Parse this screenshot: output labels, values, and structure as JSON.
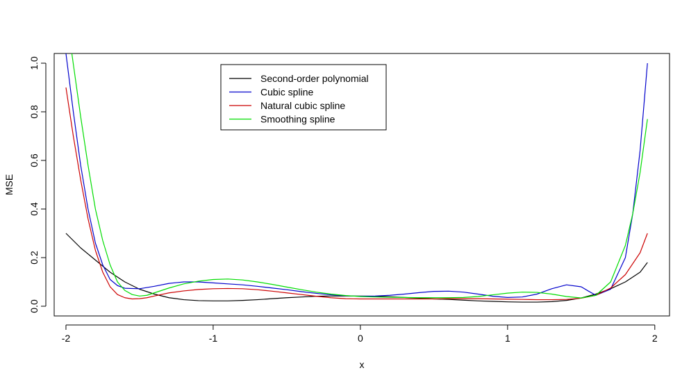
{
  "chart_data": {
    "type": "line",
    "title": "",
    "xlabel": "x",
    "ylabel": "MSE",
    "xlim": [
      -2.08,
      2.1
    ],
    "ylim": [
      -0.04,
      1.04
    ],
    "xticks": [
      -2,
      -1,
      0,
      1,
      2
    ],
    "yticks": [
      0.0,
      0.2,
      0.4,
      0.6,
      0.8,
      1.0
    ],
    "xtick_labels": [
      "-2",
      "-1",
      "0",
      "1",
      "2"
    ],
    "ytick_labels": [
      "0.0",
      "0.2",
      "0.4",
      "0.6",
      "0.8",
      "1.0"
    ],
    "grid": false,
    "legend_position": "top-left",
    "series": [
      {
        "name": "Second-order polynomial",
        "color": "#000000",
        "x": [
          -2.0,
          -1.9,
          -1.8,
          -1.7,
          -1.6,
          -1.5,
          -1.4,
          -1.3,
          -1.2,
          -1.1,
          -1.0,
          -0.9,
          -0.8,
          -0.7,
          -0.6,
          -0.5,
          -0.4,
          -0.3,
          -0.2,
          -0.1,
          0.0,
          0.1,
          0.2,
          0.3,
          0.4,
          0.5,
          0.6,
          0.7,
          0.8,
          0.9,
          1.0,
          1.1,
          1.2,
          1.3,
          1.4,
          1.5,
          1.6,
          1.7,
          1.8,
          1.9,
          1.95
        ],
        "y": [
          0.3,
          0.24,
          0.19,
          0.14,
          0.1,
          0.07,
          0.05,
          0.035,
          0.027,
          0.023,
          0.022,
          0.022,
          0.024,
          0.027,
          0.031,
          0.035,
          0.038,
          0.041,
          0.042,
          0.042,
          0.042,
          0.041,
          0.039,
          0.036,
          0.033,
          0.03,
          0.028,
          0.025,
          0.022,
          0.02,
          0.018,
          0.017,
          0.017,
          0.019,
          0.024,
          0.034,
          0.05,
          0.072,
          0.1,
          0.14,
          0.18
        ]
      },
      {
        "name": "Cubic spline",
        "color": "#0000cc",
        "x": [
          -2.0,
          -1.95,
          -1.9,
          -1.85,
          -1.8,
          -1.75,
          -1.7,
          -1.65,
          -1.6,
          -1.5,
          -1.4,
          -1.3,
          -1.2,
          -1.1,
          -1.0,
          -0.9,
          -0.8,
          -0.7,
          -0.6,
          -0.5,
          -0.4,
          -0.3,
          -0.2,
          -0.1,
          0.0,
          0.1,
          0.2,
          0.3,
          0.4,
          0.5,
          0.6,
          0.7,
          0.8,
          0.9,
          1.0,
          1.1,
          1.2,
          1.3,
          1.4,
          1.5,
          1.55,
          1.6,
          1.7,
          1.8,
          1.85,
          1.9,
          1.95
        ],
        "y": [
          1.04,
          0.8,
          0.58,
          0.4,
          0.26,
          0.17,
          0.11,
          0.085,
          0.074,
          0.072,
          0.082,
          0.094,
          0.1,
          0.1,
          0.096,
          0.092,
          0.088,
          0.082,
          0.075,
          0.068,
          0.06,
          0.053,
          0.047,
          0.043,
          0.041,
          0.042,
          0.045,
          0.05,
          0.056,
          0.061,
          0.062,
          0.058,
          0.05,
          0.041,
          0.036,
          0.038,
          0.05,
          0.072,
          0.088,
          0.08,
          0.062,
          0.045,
          0.07,
          0.2,
          0.38,
          0.64,
          1.0
        ]
      },
      {
        "name": "Natural cubic spline",
        "color": "#cc0000",
        "x": [
          -2.0,
          -1.95,
          -1.9,
          -1.85,
          -1.8,
          -1.75,
          -1.7,
          -1.65,
          -1.6,
          -1.55,
          -1.5,
          -1.45,
          -1.4,
          -1.3,
          -1.2,
          -1.1,
          -1.0,
          -0.9,
          -0.8,
          -0.7,
          -0.6,
          -0.5,
          -0.4,
          -0.3,
          -0.2,
          -0.1,
          0.0,
          0.1,
          0.2,
          0.3,
          0.4,
          0.5,
          0.6,
          0.7,
          0.8,
          0.9,
          1.0,
          1.1,
          1.2,
          1.3,
          1.4,
          1.5,
          1.6,
          1.7,
          1.8,
          1.9,
          1.95
        ],
        "y": [
          0.9,
          0.7,
          0.52,
          0.36,
          0.23,
          0.14,
          0.08,
          0.048,
          0.035,
          0.03,
          0.031,
          0.035,
          0.042,
          0.055,
          0.063,
          0.069,
          0.072,
          0.073,
          0.072,
          0.068,
          0.062,
          0.055,
          0.048,
          0.041,
          0.035,
          0.031,
          0.03,
          0.03,
          0.03,
          0.03,
          0.03,
          0.03,
          0.031,
          0.031,
          0.031,
          0.03,
          0.029,
          0.028,
          0.027,
          0.027,
          0.028,
          0.033,
          0.045,
          0.075,
          0.13,
          0.22,
          0.3
        ]
      },
      {
        "name": "Smoothing spline",
        "color": "#00dd00",
        "x": [
          -1.96,
          -1.9,
          -1.85,
          -1.8,
          -1.75,
          -1.7,
          -1.65,
          -1.6,
          -1.55,
          -1.5,
          -1.45,
          -1.4,
          -1.3,
          -1.2,
          -1.1,
          -1.0,
          -0.9,
          -0.8,
          -0.7,
          -0.6,
          -0.5,
          -0.4,
          -0.3,
          -0.2,
          -0.1,
          0.0,
          0.1,
          0.2,
          0.3,
          0.4,
          0.5,
          0.6,
          0.7,
          0.8,
          0.9,
          1.0,
          1.1,
          1.2,
          1.3,
          1.4,
          1.5,
          1.6,
          1.7,
          1.8,
          1.85,
          1.9,
          1.95
        ],
        "y": [
          1.04,
          0.78,
          0.58,
          0.4,
          0.27,
          0.17,
          0.1,
          0.065,
          0.048,
          0.042,
          0.045,
          0.055,
          0.075,
          0.092,
          0.103,
          0.11,
          0.112,
          0.108,
          0.1,
          0.09,
          0.079,
          0.068,
          0.058,
          0.05,
          0.044,
          0.04,
          0.038,
          0.037,
          0.036,
          0.035,
          0.035,
          0.035,
          0.036,
          0.04,
          0.047,
          0.054,
          0.058,
          0.057,
          0.05,
          0.04,
          0.034,
          0.045,
          0.1,
          0.25,
          0.38,
          0.55,
          0.77
        ]
      }
    ]
  }
}
